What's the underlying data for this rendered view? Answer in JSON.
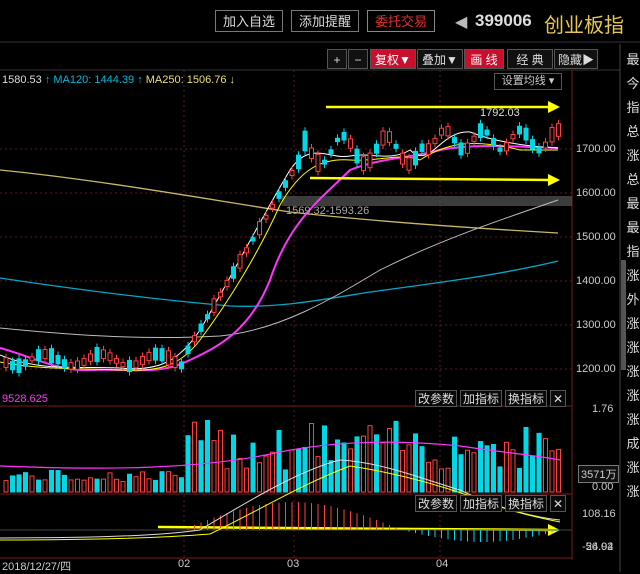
{
  "header": {
    "btn_add_watch": "加入自选",
    "btn_add_alert": "添加提醒",
    "btn_trade": "委托交易",
    "code": "399006",
    "name": "创业板指"
  },
  "toolbar": {
    "plus": "+",
    "minus": "−",
    "fuquan": "复权▼",
    "overlay": "叠加▼",
    "draw": "画 线",
    "classic": "经 典",
    "hide": "隐藏▶"
  },
  "ma_bar": {
    "value": "1580.53",
    "ma120": "MA120: 1444.39",
    "ma250": "MA250: 1506.76",
    "settings": "设置均线"
  },
  "annotations": {
    "high_label": "1792.03",
    "range_label": "1569.32-1593.26",
    "vol_label": "9528.625"
  },
  "price_axis": [
    "1700.00",
    "1600.00",
    "1500.00",
    "1400.00",
    "1300.00",
    "1200.00"
  ],
  "vol_axis": {
    "top": "1.76",
    "current": "3571万",
    "bottom": "0.00"
  },
  "macd_axis": {
    "top": "108.16",
    "current": "24.94",
    "bottom": "-56.02"
  },
  "panel_buttons": {
    "change_params": "改参数",
    "add_indicator": "加指标",
    "switch_indicator": "换指标",
    "close": "✕"
  },
  "date_axis": [
    "2018/12/27/四",
    "02",
    "03",
    "04"
  ],
  "right_sidebar": [
    "最",
    "今",
    "指",
    "总",
    "涨",
    "总",
    "最",
    "最",
    "指",
    "涨",
    "外",
    "涨",
    "涨",
    "涨",
    "涨",
    "涨",
    "成",
    "涨",
    "涨"
  ],
  "colors": {
    "up": "#ff4040",
    "down": "#00d8e8",
    "ma5": "#ffffff",
    "ma10": "#ffff00",
    "ma20": "#ff33ff",
    "ma120": "#00b8d8",
    "ma250": "#d8c870",
    "annot": "#ffff00"
  },
  "chart_data": {
    "type": "line",
    "price_ylim": [
      1170,
      1820
    ],
    "support_lines": [
      1703.26,
      1711.87
    ],
    "trend_arrows": [
      1792.03,
      1627.5
    ],
    "ma120_path": [
      1430,
      1402,
      1378,
      1357,
      1341,
      1331,
      1329,
      1336,
      1351,
      1378,
      1413,
      1462,
      1519,
      1560
    ],
    "ma250_path": [
      1597,
      1588,
      1576,
      1563,
      1549,
      1536,
      1528,
      1525,
      1522,
      1518,
      1513,
      1509,
      1506
    ],
    "macd_ylim": [
      -56.02,
      108.16
    ]
  }
}
